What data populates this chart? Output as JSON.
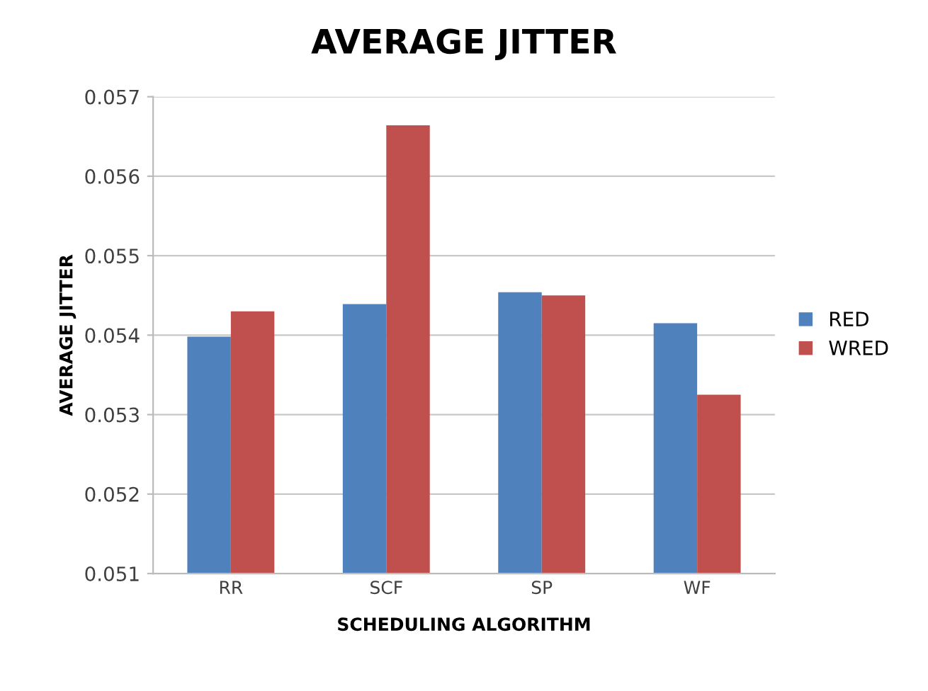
{
  "chart_data": {
    "type": "bar",
    "title": "AVERAGE JITTER",
    "xlabel": "SCHEDULING ALGORITHM",
    "ylabel": "AVERAGE JITTER",
    "categories": [
      "RR",
      "SCF",
      "SP",
      "WF"
    ],
    "series": [
      {
        "name": "RED",
        "color": "#4f81bd",
        "values": [
          0.05398,
          0.05439,
          0.05454,
          0.05415
        ]
      },
      {
        "name": "WRED",
        "color": "#c0504d",
        "values": [
          0.0543,
          0.05664,
          0.0545,
          0.05325
        ]
      }
    ],
    "ylim": [
      0.051,
      0.057
    ],
    "yticks": [
      0.051,
      0.052,
      0.053,
      0.054,
      0.055,
      0.056,
      0.057
    ],
    "grid": "y",
    "legend": "right"
  }
}
